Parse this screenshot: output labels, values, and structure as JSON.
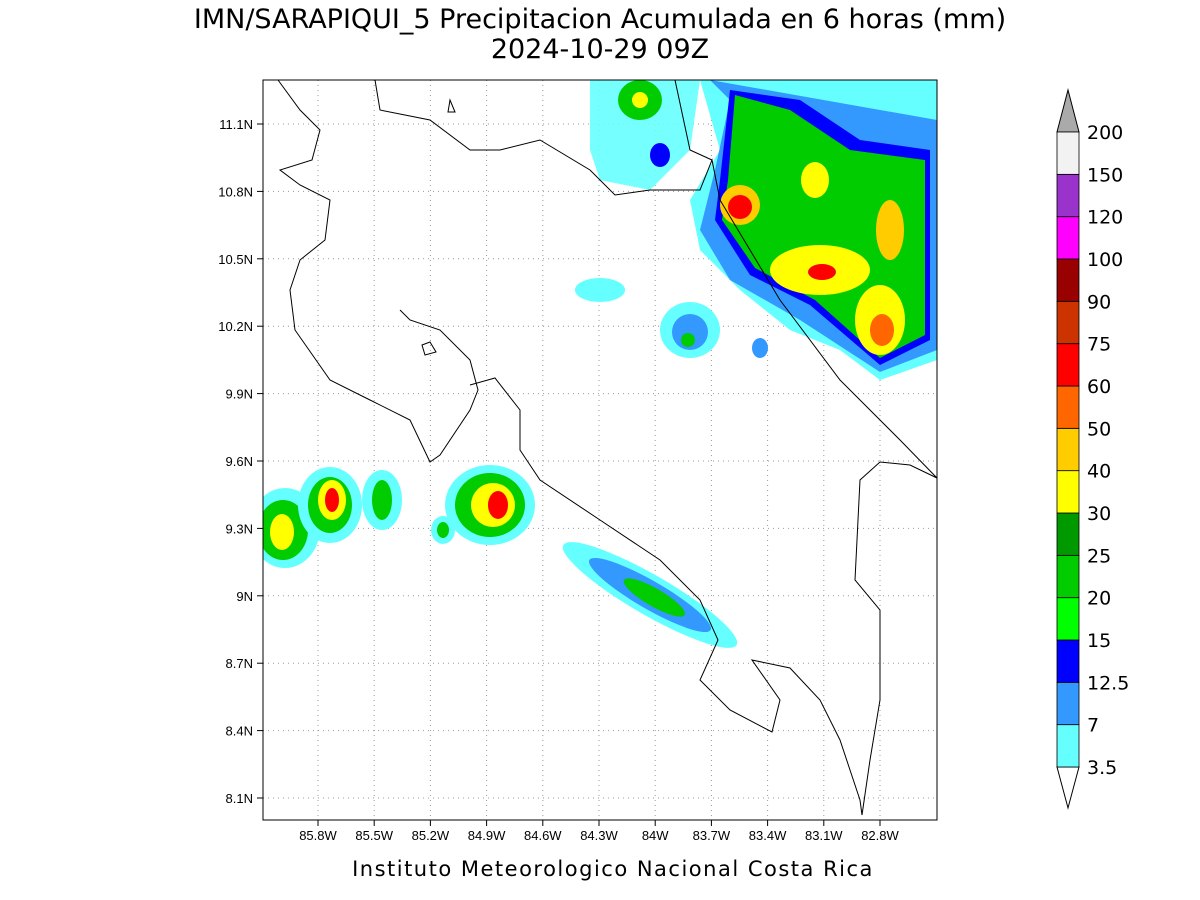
{
  "header": {
    "title": "IMN/SARAPIQUI_5 Precipitacion Acumulada en 6 horas (mm)",
    "subtitle": "2024-10-29 09Z"
  },
  "map": {
    "lat_ticks": [
      "11.1N",
      "10.8N",
      "10.5N",
      "10.2N",
      "9.9N",
      "9.6N",
      "9.3N",
      "9N",
      "8.7N",
      "8.4N",
      "8.1N"
    ],
    "lon_ticks": [
      "85.8W",
      "85.5W",
      "85.2W",
      "84.9W",
      "84.6W",
      "84.3W",
      "84W",
      "83.7W",
      "83.4W",
      "83.1W",
      "82.8W"
    ]
  },
  "legend": {
    "levels": [
      3.5,
      7,
      12.5,
      15,
      20,
      25,
      30,
      40,
      50,
      60,
      75,
      90,
      100,
      120,
      150,
      200
    ],
    "colors": [
      "#66ffff",
      "#3399ff",
      "#0000ff",
      "#00ff00",
      "#00cc00",
      "#009900",
      "#ffff00",
      "#ffcc00",
      "#ff6600",
      "#ff0000",
      "#cc3300",
      "#990000",
      "#ff00ff",
      "#9933cc",
      "#f2f2f2"
    ],
    "below_color": "#ffffff",
    "above_color": "#aaaaaa"
  },
  "footer": "Instituto Meteorologico Nacional Costa Rica"
}
